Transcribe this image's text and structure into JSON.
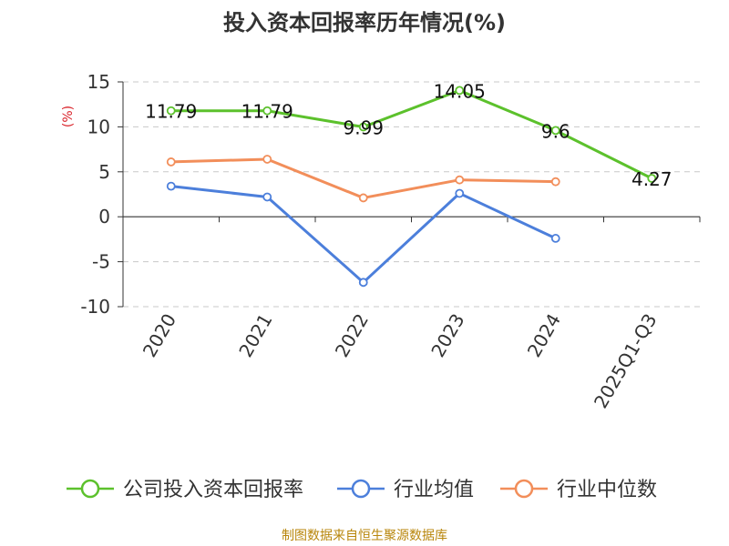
{
  "chart_data": {
    "type": "line",
    "title": "投入资本回报率历年情况(%)",
    "ylabel": "(%)",
    "xlabel": "",
    "categories": [
      "2020",
      "2021",
      "2022",
      "2023",
      "2024",
      "2025Q1-Q3"
    ],
    "y_ticks": [
      "15",
      "10",
      "5",
      "0",
      "-5",
      "-10"
    ],
    "ylim": [
      -10,
      15
    ],
    "grid": "horizontal dashed",
    "legend_position": "bottom",
    "series": [
      {
        "name": "公司投入资本回报率",
        "color": "#5cc12c",
        "values": [
          11.79,
          11.79,
          9.99,
          14.05,
          9.6,
          4.27
        ],
        "labels": [
          "11.79",
          "11.79",
          "9.99",
          "14.05",
          "9.6",
          "4.27"
        ]
      },
      {
        "name": "行业均值",
        "color": "#4c7fdb",
        "values": [
          3.4,
          2.2,
          -7.3,
          2.6,
          -2.4,
          null
        ]
      },
      {
        "name": "行业中位数",
        "color": "#f28e5a",
        "values": [
          6.1,
          6.4,
          2.1,
          4.1,
          3.9,
          null
        ]
      }
    ],
    "source": "制图数据来自恒生聚源数据库"
  }
}
